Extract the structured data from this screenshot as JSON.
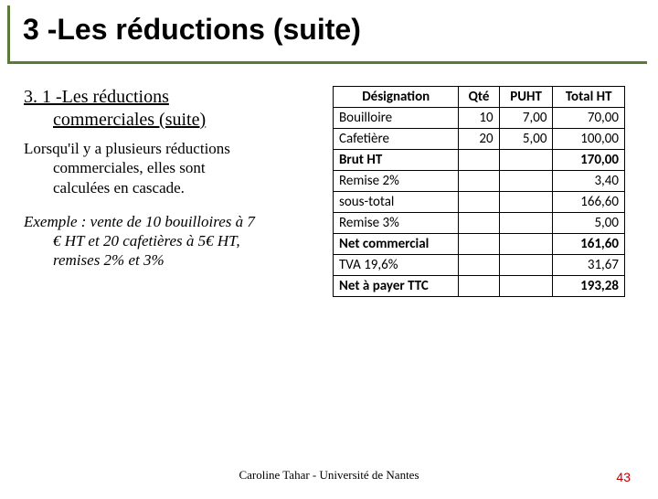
{
  "title": "3 -Les réductions (suite)",
  "subheading": {
    "line1": "3. 1 -Les réductions",
    "line2": "commerciales (suite)"
  },
  "body": {
    "line1": "Lorsqu'il y a plusieurs réductions",
    "line2": "commerciales, elles sont",
    "line3": "calculées en cascade."
  },
  "example": {
    "line1": "Exemple : vente de 10 bouilloires à 7",
    "line2": "€ HT et 20 cafetières à 5€ HT,",
    "line3": "remises 2% et 3%"
  },
  "table": {
    "headers": [
      "Désignation",
      "Qté",
      "PUHT",
      "Total HT"
    ],
    "rows": [
      {
        "cells": [
          "Bouilloire",
          "10",
          "7,00",
          "70,00"
        ],
        "bold": false
      },
      {
        "cells": [
          "Cafetière",
          "20",
          "5,00",
          "100,00"
        ],
        "bold": false
      },
      {
        "cells": [
          "Brut HT",
          "",
          "",
          "170,00"
        ],
        "bold": true
      },
      {
        "cells": [
          "Remise 2%",
          "",
          "",
          "3,40"
        ],
        "bold": false
      },
      {
        "cells": [
          "sous-total",
          "",
          "",
          "166,60"
        ],
        "bold": false
      },
      {
        "cells": [
          "Remise 3%",
          "",
          "",
          "5,00"
        ],
        "bold": false
      },
      {
        "cells": [
          "Net commercial",
          "",
          "",
          "161,60"
        ],
        "bold": true
      },
      {
        "cells": [
          "TVA 19,6%",
          "",
          "",
          "31,67"
        ],
        "bold": false
      },
      {
        "cells": [
          "Net à payer TTC",
          "",
          "",
          "193,28"
        ],
        "bold": true
      }
    ]
  },
  "footer": "Caroline Tahar - Université de Nantes",
  "page_number": "43",
  "colors": {
    "accent": "#5a7a3a",
    "page_num": "#c00000"
  }
}
